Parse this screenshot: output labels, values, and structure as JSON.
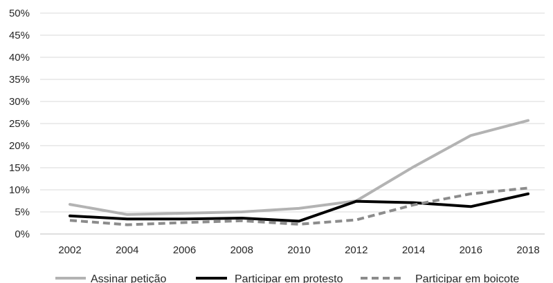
{
  "chart_data": {
    "type": "line",
    "title": "",
    "xlabel": "",
    "ylabel": "",
    "categories": [
      "2002",
      "2004",
      "2006",
      "2008",
      "2010",
      "2012",
      "2014",
      "2016",
      "2018"
    ],
    "ylim": [
      0,
      50
    ],
    "yticks": [
      "0%",
      "5%",
      "10%",
      "15%",
      "20%",
      "25%",
      "30%",
      "35%",
      "40%",
      "45%",
      "50%"
    ],
    "grid": true,
    "legend_position": "bottom",
    "series": [
      {
        "name": "Assinar petição",
        "values": [
          6.7,
          4.4,
          4.7,
          5.0,
          5.8,
          7.5,
          15.2,
          22.3,
          25.7
        ],
        "color": "#b3b3b3",
        "dash": "solid"
      },
      {
        "name": "Participar em protesto",
        "values": [
          4.1,
          3.4,
          3.4,
          3.6,
          2.9,
          7.4,
          7.1,
          6.2,
          9.1
        ],
        "color": "#000000",
        "dash": "solid"
      },
      {
        "name": "Participar em boicote",
        "values": [
          3.1,
          2.1,
          2.6,
          3.0,
          2.2,
          3.2,
          6.6,
          9.1,
          10.4
        ],
        "color": "#8c8c8c",
        "dash": "dashed"
      }
    ]
  }
}
